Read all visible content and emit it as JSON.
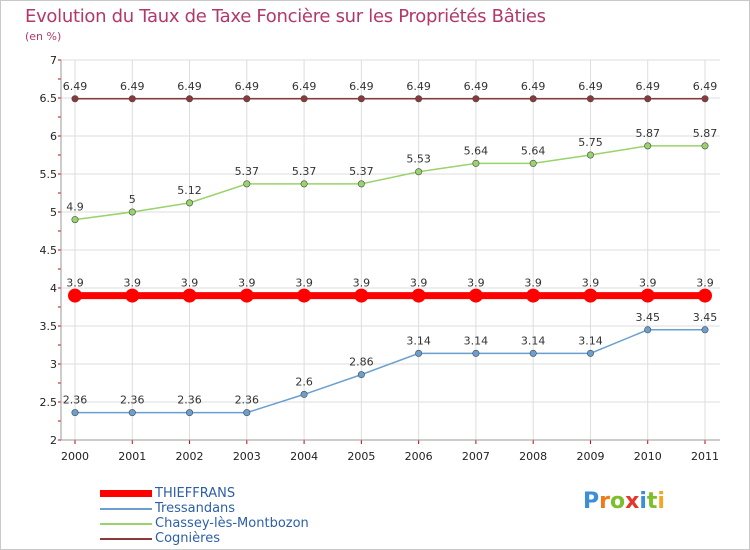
{
  "title": "Evolution du Taux de Taxe Foncière sur les Propriétés Bâties",
  "unit_label": "(en %)",
  "logo": {
    "text": "Proxiti",
    "letters": [
      "P",
      "r",
      "o",
      "x",
      "i",
      "t",
      "i"
    ],
    "colors": [
      "#3a8fd6",
      "#f07a1a",
      "#7bbf2a",
      "#e8352b",
      "#3a8fd6",
      "#7bbf2a",
      "#f5a623"
    ]
  },
  "chart_data": {
    "type": "line",
    "title": "Evolution du Taux de Taxe Foncière sur les Propriétés Bâties",
    "ylabel": "(en %)",
    "xlabel": "",
    "x": [
      "2000",
      "2001",
      "2002",
      "2003",
      "2004",
      "2005",
      "2006",
      "2007",
      "2008",
      "2009",
      "2010",
      "2011"
    ],
    "ylim": [
      2,
      7
    ],
    "yticks": [
      "2",
      "2.5",
      "3",
      "3.5",
      "4",
      "4.5",
      "5",
      "5.5",
      "6",
      "6.5",
      "7"
    ],
    "grid": true,
    "series": [
      {
        "name": "THIEFFRANS",
        "color": "#ff0000",
        "values": [
          3.9,
          3.9,
          3.9,
          3.9,
          3.9,
          3.9,
          3.9,
          3.9,
          3.9,
          3.9,
          3.9,
          3.9
        ],
        "labels": [
          "3.9",
          "3.9",
          "3.9",
          "3.9",
          "3.9",
          "3.9",
          "3.9",
          "3.9",
          "3.9",
          "3.9",
          "3.9",
          "3.9"
        ]
      },
      {
        "name": "Tressandans",
        "color": "#6a9fcf",
        "values": [
          2.36,
          2.36,
          2.36,
          2.36,
          2.6,
          2.86,
          3.14,
          3.14,
          3.14,
          3.14,
          3.45,
          3.45
        ],
        "labels": [
          "2.36",
          "2.36",
          "2.36",
          "2.36",
          "2.6",
          "2.86",
          "3.14",
          "3.14",
          "3.14",
          "3.14",
          "3.45",
          "3.45"
        ]
      },
      {
        "name": "Chassey-lès-Montbozon",
        "color": "#99d36b",
        "values": [
          4.9,
          5,
          5.12,
          5.37,
          5.37,
          5.37,
          5.53,
          5.64,
          5.64,
          5.75,
          5.87,
          5.87
        ],
        "labels": [
          "4.9",
          "5",
          "5.12",
          "5.37",
          "5.37",
          "5.37",
          "5.53",
          "5.64",
          "5.64",
          "5.75",
          "5.87",
          "5.87"
        ]
      },
      {
        "name": "Cognières",
        "color": "#8a3a3a",
        "values": [
          6.49,
          6.49,
          6.49,
          6.49,
          6.49,
          6.49,
          6.49,
          6.49,
          6.49,
          6.49,
          6.49,
          6.49
        ],
        "labels": [
          "6.49",
          "6.49",
          "6.49",
          "6.49",
          "6.49",
          "6.49",
          "6.49",
          "6.49",
          "6.49",
          "6.49",
          "6.49",
          "6.49"
        ]
      }
    ]
  }
}
